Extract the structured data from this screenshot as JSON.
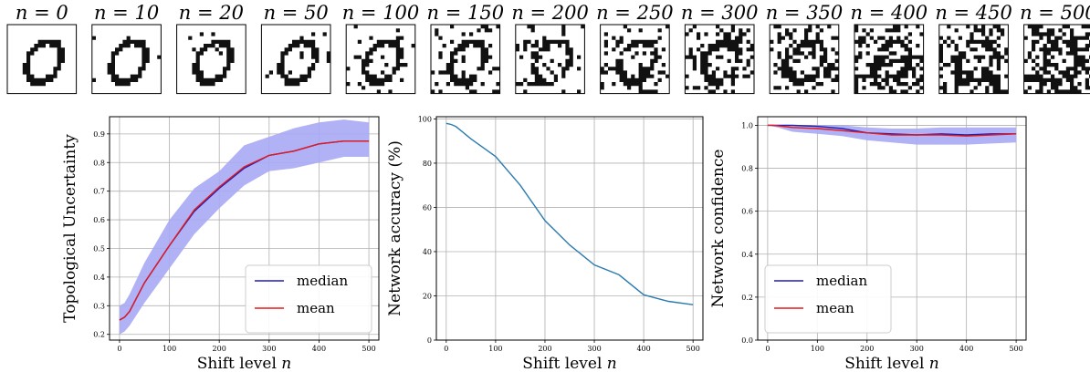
{
  "shift_panel": {
    "levels": [
      "n = 0",
      "n = 10",
      "n = 20",
      "n = 50",
      "n = 100",
      "n = 150",
      "n = 200",
      "n = 250",
      "n = 300",
      "n = 350",
      "n = 400",
      "n = 450",
      "n = 500"
    ],
    "noise_fraction": [
      0.0,
      0.02,
      0.04,
      0.08,
      0.16,
      0.24,
      0.32,
      0.4,
      0.48,
      0.56,
      0.64,
      0.72,
      0.8
    ]
  },
  "colors": {
    "median": "#1f1fb4",
    "mean": "#e31a1c",
    "band": "#a9a9f5",
    "accuracy": "#2b7bb0",
    "grid": "#b0b0b0"
  },
  "chart_data": [
    {
      "type": "line",
      "ylabel": "Topological Uncertainty",
      "xlabel": "Shift level n",
      "xlim": [
        -20,
        520
      ],
      "ylim": [
        0.18,
        0.96
      ],
      "xticks": [
        0,
        100,
        200,
        300,
        400,
        500
      ],
      "yticks": [
        0.2,
        0.3,
        0.4,
        0.5,
        0.6,
        0.7,
        0.8,
        0.9
      ],
      "x": [
        0,
        10,
        20,
        50,
        100,
        150,
        200,
        250,
        300,
        350,
        400,
        450,
        500
      ],
      "band_lower": [
        0.2,
        0.21,
        0.23,
        0.31,
        0.43,
        0.55,
        0.64,
        0.72,
        0.77,
        0.78,
        0.8,
        0.82,
        0.82
      ],
      "band_upper": [
        0.3,
        0.31,
        0.34,
        0.45,
        0.6,
        0.71,
        0.77,
        0.86,
        0.89,
        0.92,
        0.94,
        0.95,
        0.94
      ],
      "series": [
        {
          "name": "median",
          "values": [
            0.25,
            0.26,
            0.28,
            0.38,
            0.51,
            0.63,
            0.71,
            0.78,
            0.825,
            0.84,
            0.865,
            0.875,
            0.875
          ]
        },
        {
          "name": "mean",
          "values": [
            0.25,
            0.26,
            0.28,
            0.38,
            0.51,
            0.635,
            0.715,
            0.785,
            0.825,
            0.84,
            0.865,
            0.875,
            0.875
          ]
        }
      ],
      "legend": "lower-right",
      "grid": true
    },
    {
      "type": "line",
      "ylabel": "Network accuracy (%)",
      "xlabel": "Shift level n",
      "xlim": [
        -20,
        520
      ],
      "ylim": [
        0,
        101
      ],
      "xticks": [
        0,
        100,
        200,
        300,
        400,
        500
      ],
      "yticks": [
        0,
        20,
        40,
        60,
        80,
        100
      ],
      "x": [
        0,
        10,
        20,
        50,
        100,
        150,
        200,
        250,
        300,
        350,
        400,
        450,
        500
      ],
      "series": [
        {
          "values": [
            98,
            97.5,
            96.5,
            91,
            83,
            70,
            54,
            43,
            34,
            29.5,
            20.5,
            17.5,
            16
          ]
        }
      ],
      "grid": true
    },
    {
      "type": "line",
      "ylabel": "Network confidence",
      "xlabel": "Shift level n",
      "xlim": [
        -20,
        520
      ],
      "ylim": [
        0.0,
        1.04
      ],
      "xticks": [
        0,
        100,
        200,
        300,
        400,
        500
      ],
      "yticks": [
        0.0,
        0.2,
        0.4,
        0.6,
        0.8,
        1.0
      ],
      "x": [
        0,
        10,
        20,
        50,
        100,
        150,
        200,
        250,
        300,
        350,
        400,
        450,
        500
      ],
      "band_lower": [
        1.0,
        0.995,
        0.99,
        0.97,
        0.96,
        0.95,
        0.93,
        0.92,
        0.91,
        0.91,
        0.91,
        0.915,
        0.92
      ],
      "band_upper": [
        1.0,
        1.0,
        1.0,
        1.0,
        1.0,
        1.0,
        0.99,
        0.985,
        0.985,
        0.99,
        0.99,
        0.99,
        0.99
      ],
      "series": [
        {
          "name": "median",
          "values": [
            1.0,
            1.0,
            1.0,
            1.0,
            0.995,
            0.985,
            0.965,
            0.96,
            0.955,
            0.96,
            0.955,
            0.96,
            0.96
          ]
        },
        {
          "name": "mean",
          "values": [
            1.0,
            1.0,
            0.998,
            0.99,
            0.985,
            0.975,
            0.965,
            0.955,
            0.955,
            0.955,
            0.95,
            0.955,
            0.96
          ]
        }
      ],
      "legend": "lower-left",
      "grid": true
    }
  ]
}
